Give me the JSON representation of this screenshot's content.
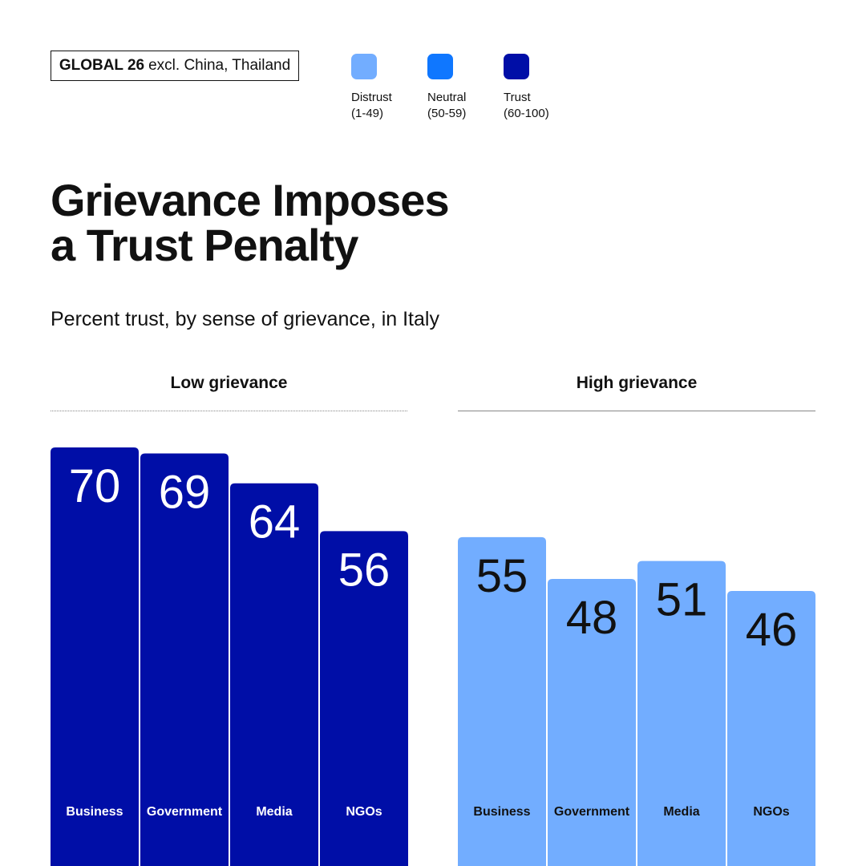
{
  "badge": {
    "strong": "GLOBAL 26",
    "rest": "excl. China, Thailand"
  },
  "legend": [
    {
      "label": "Distrust",
      "range": "(1-49)",
      "color": "#72adff"
    },
    {
      "label": "Neutral",
      "range": "(50-59)",
      "color": "#0f77ff"
    },
    {
      "label": "Trust",
      "range": "(60-100)",
      "color": "#000ea7"
    }
  ],
  "chart_data": {
    "type": "bar",
    "title_line1": "Grievance Imposes",
    "title_line2": "a Trust Penalty",
    "subtitle": "Percent trust, by sense of grievance, in Italy",
    "ylim": [
      0,
      100
    ],
    "groups": [
      {
        "name": "Low grievance",
        "categories": [
          "Business",
          "Government",
          "Media",
          "NGOs"
        ],
        "values": [
          70,
          69,
          64,
          56
        ],
        "color": "#000ea7",
        "text_color": "#ffffff"
      },
      {
        "name": "High grievance",
        "categories": [
          "Business",
          "Government",
          "Media",
          "NGOs"
        ],
        "values": [
          55,
          48,
          51,
          46
        ],
        "color": "#72adff",
        "text_color": "#111111"
      }
    ]
  }
}
